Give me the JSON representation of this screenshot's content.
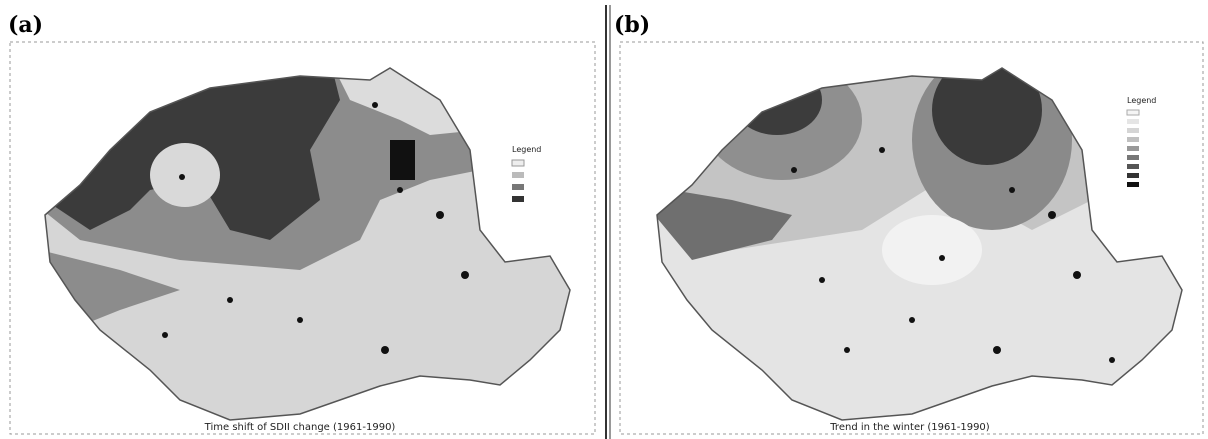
{
  "panels": [
    {
      "label": "(a)",
      "caption": "Time shift of SDII change (1961-1990)",
      "legend_title": "Legend"
    },
    {
      "label": "(b)",
      "caption": "Trend in the winter (1961-1990)",
      "legend_title": "Legend"
    }
  ]
}
